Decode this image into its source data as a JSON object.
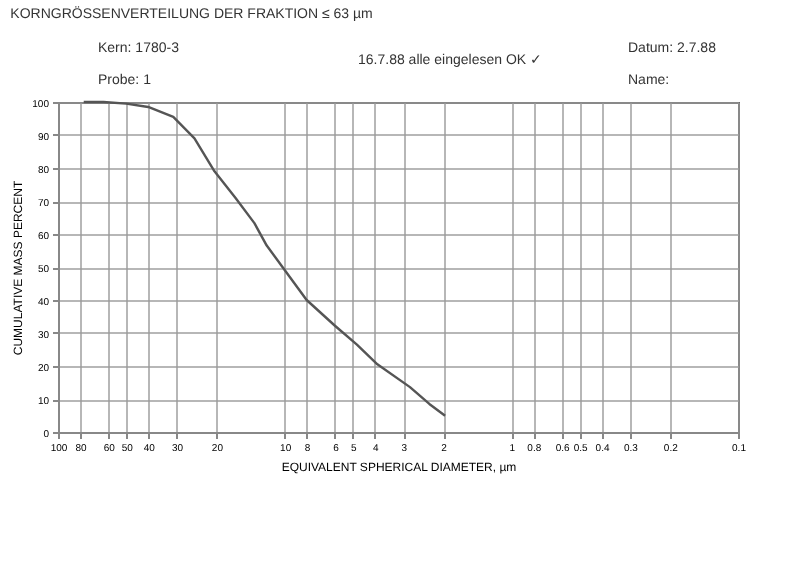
{
  "chart_data": {
    "type": "line",
    "title": "KORNGRÖSSENVERTEILUNG DER FRAKTION ≤ 63 µm",
    "xlabel": "EQUIVALENT SPHERICAL DIAMETER, µm",
    "ylabel": "CUMULATIVE MASS PERCENT",
    "annotations": [
      "Kern: 1780-3",
      "Probe: 1",
      "16.7.88 alle eingelesen OK ✓",
      "Datum: 2.7.88",
      "Name:"
    ],
    "x": [
      77,
      70,
      63,
      50,
      40,
      31,
      25,
      20.4,
      16.5,
      13.6,
      12,
      10.4,
      8,
      6,
      4.8,
      3.9,
      2.8,
      2.3,
      1.96
    ],
    "series": [
      {
        "color": "#555555",
        "values": [
          100,
          100,
          100,
          99.5,
          98.5,
          95.5,
          89,
          79,
          71,
          63.3,
          56.5,
          50.7,
          40,
          32.2,
          26.5,
          20.5,
          13.6,
          8.5,
          4.9
        ]
      }
    ],
    "log": "x",
    "xlim": [
      100,
      0.1
    ],
    "xticks": [
      100,
      80,
      60,
      50,
      40,
      30,
      20,
      10,
      8,
      6,
      5,
      4,
      3,
      2,
      1,
      0.8,
      0.6,
      0.5,
      0.4,
      0.3,
      0.2,
      0.1
    ],
    "ylim": [
      0,
      100
    ],
    "yticks": [
      0,
      10,
      20,
      30,
      40,
      50,
      60,
      70,
      80,
      90,
      100
    ],
    "grid": true,
    "marker": "none",
    "line_style": "solid"
  }
}
